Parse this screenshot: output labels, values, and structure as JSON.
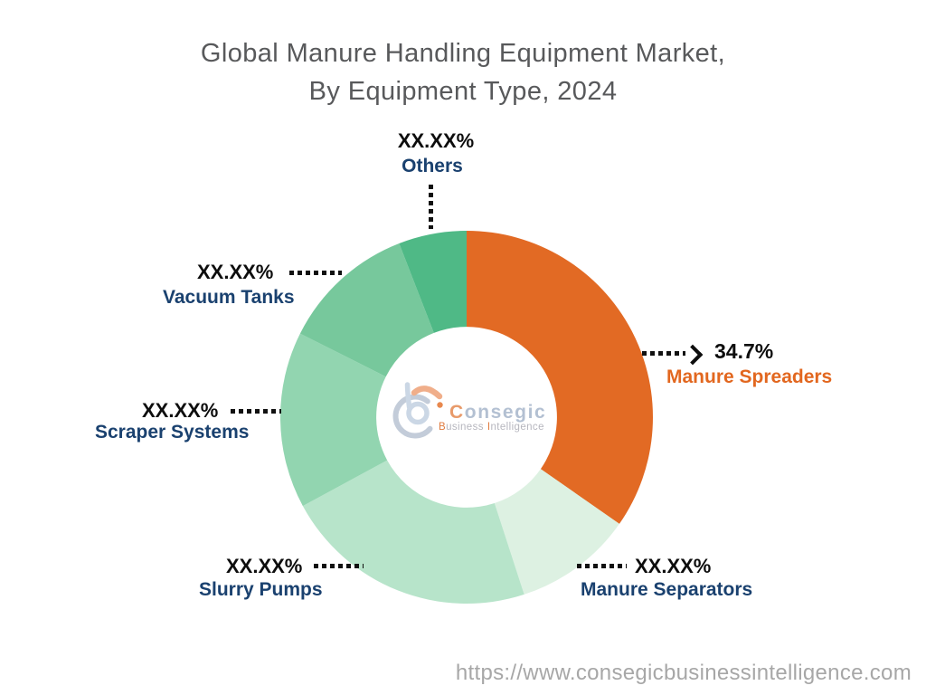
{
  "title": {
    "line1": "Global Manure Handling Equipment Market,",
    "line2": "By Equipment Type, 2024"
  },
  "chart_data": {
    "type": "pie",
    "subtype": "donut",
    "title": "Global Manure Handling Equipment Market, By Equipment Type, 2024",
    "unit": "%",
    "direction": "clockwise",
    "start_angle_deg": 0,
    "inner_radius_ratio": 0.485,
    "segments": [
      {
        "label": "Manure Spreaders",
        "value_label": "34.7%",
        "value_pct": 34.7,
        "color": "#E26A24"
      },
      {
        "label": "Manure Separators",
        "value_label": "XX.XX%",
        "value_pct": 10.3,
        "color": "#DDF1E2"
      },
      {
        "label": "Slurry Pumps",
        "value_label": "XX.XX%",
        "value_pct": 22.1,
        "color": "#B7E4CA"
      },
      {
        "label": "Scraper Systems",
        "value_label": "XX.XX%",
        "value_pct": 15.3,
        "color": "#92D5B0"
      },
      {
        "label": "Vacuum Tanks",
        "value_label": "XX.XX%",
        "value_pct": 11.7,
        "color": "#77C89C"
      },
      {
        "label": "Others",
        "value_label": "XX.XX%",
        "value_pct": 5.9,
        "color": "#4FB986"
      }
    ]
  },
  "logo": {
    "brand_first": "C",
    "brand_rest": "onsegic",
    "tag_b": "B",
    "tag_business_rest": "usiness",
    "tag_i": "I",
    "tag_intelligence_rest": "ntelligence"
  },
  "footer": {
    "url": "https://www.consegicbusinessintelligence.com"
  },
  "colors": {
    "accent_orange": "#E26A24",
    "label_navy": "#1A416F",
    "value_black": "#0D0D0D",
    "title_gray": "#58595B",
    "url_gray": "#A7A7A7",
    "leader_line_black": "#111111"
  }
}
